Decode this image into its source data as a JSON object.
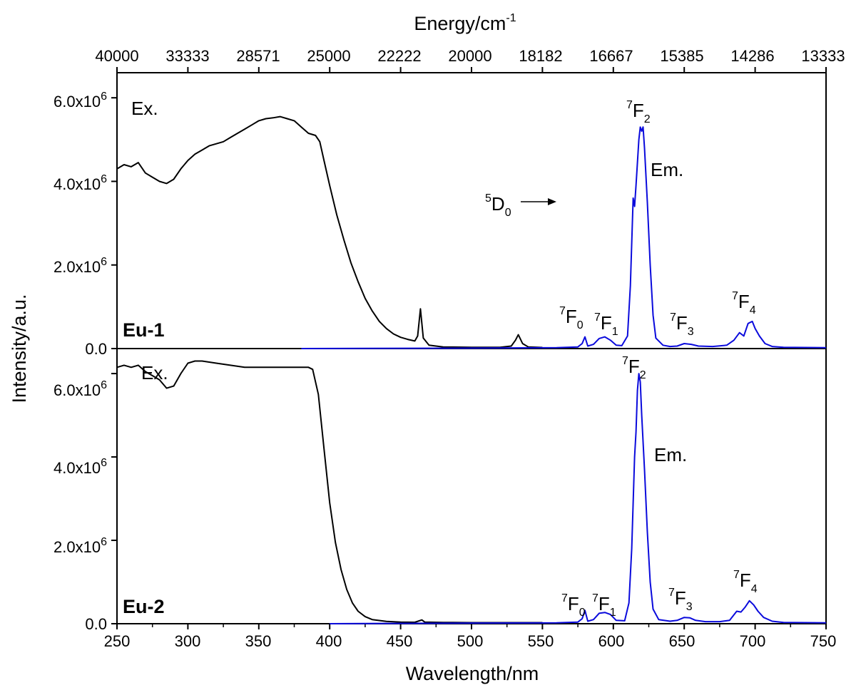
{
  "chart_data": {
    "type": "line",
    "top_axis": {
      "title": "Energy/cm",
      "title_sup": "-1",
      "tick_labels": [
        "40000",
        "33333",
        "28571",
        "25000",
        "22222",
        "20000",
        "18182",
        "16667",
        "15385",
        "14286",
        "13333"
      ]
    },
    "x_axis": {
      "title": "Wavelength/nm",
      "range": [
        250,
        750
      ],
      "ticks": [
        250,
        300,
        350,
        400,
        450,
        500,
        550,
        600,
        650,
        700,
        750
      ]
    },
    "y_axis": {
      "title": "Intensity/a.u.",
      "tick_labels": [
        {
          "mantissa": "0.0",
          "exp": ""
        },
        {
          "mantissa": "2.0x10",
          "exp": "6"
        },
        {
          "mantissa": "4.0x10",
          "exp": "6"
        },
        {
          "mantissa": "6.0x10",
          "exp": "6"
        }
      ],
      "tick_values": [
        0,
        2000000,
        4000000,
        6000000
      ]
    },
    "panels": [
      {
        "label": "Eu-1",
        "ylim": [
          0,
          6600000
        ],
        "series": [
          {
            "color": "#000000",
            "points": [
              [
                250,
                4300000
              ],
              [
                255,
                4400000
              ],
              [
                260,
                4350000
              ],
              [
                265,
                4450000
              ],
              [
                270,
                4200000
              ],
              [
                275,
                4100000
              ],
              [
                280,
                4000000
              ],
              [
                285,
                3950000
              ],
              [
                290,
                4050000
              ],
              [
                295,
                4300000
              ],
              [
                300,
                4500000
              ],
              [
                305,
                4650000
              ],
              [
                310,
                4750000
              ],
              [
                315,
                4850000
              ],
              [
                320,
                4900000
              ],
              [
                325,
                4950000
              ],
              [
                330,
                5050000
              ],
              [
                335,
                5150000
              ],
              [
                340,
                5250000
              ],
              [
                345,
                5350000
              ],
              [
                350,
                5450000
              ],
              [
                355,
                5500000
              ],
              [
                360,
                5520000
              ],
              [
                365,
                5550000
              ],
              [
                370,
                5500000
              ],
              [
                375,
                5450000
              ],
              [
                380,
                5300000
              ],
              [
                385,
                5150000
              ],
              [
                390,
                5100000
              ],
              [
                393,
                4950000
              ],
              [
                396,
                4500000
              ],
              [
                400,
                3900000
              ],
              [
                405,
                3200000
              ],
              [
                410,
                2600000
              ],
              [
                415,
                2050000
              ],
              [
                420,
                1600000
              ],
              [
                425,
                1200000
              ],
              [
                430,
                900000
              ],
              [
                435,
                650000
              ],
              [
                440,
                480000
              ],
              [
                445,
                350000
              ],
              [
                450,
                270000
              ],
              [
                455,
                220000
              ],
              [
                460,
                180000
              ],
              [
                462,
                300000
              ],
              [
                464,
                950000
              ],
              [
                466,
                250000
              ],
              [
                470,
                80000
              ],
              [
                480,
                40000
              ],
              [
                500,
                30000
              ],
              [
                520,
                30000
              ],
              [
                528,
                60000
              ],
              [
                531,
                200000
              ],
              [
                533,
                330000
              ],
              [
                536,
                120000
              ],
              [
                540,
                40000
              ],
              [
                550,
                25000
              ]
            ]
          },
          {
            "color": "#0a0adc",
            "points": [
              [
                380,
                0
              ],
              [
                500,
                10000
              ],
              [
                560,
                20000
              ],
              [
                575,
                40000
              ],
              [
                578,
                120000
              ],
              [
                580,
                280000
              ],
              [
                582,
                60000
              ],
              [
                586,
                100000
              ],
              [
                590,
                240000
              ],
              [
                594,
                280000
              ],
              [
                598,
                200000
              ],
              [
                602,
                80000
              ],
              [
                606,
                70000
              ],
              [
                610,
                300000
              ],
              [
                612,
                1500000
              ],
              [
                614,
                3600000
              ],
              [
                615,
                3400000
              ],
              [
                616,
                3900000
              ],
              [
                618,
                5000000
              ],
              [
                619,
                5300000
              ],
              [
                620,
                5200000
              ],
              [
                621,
                5300000
              ],
              [
                622,
                4800000
              ],
              [
                624,
                3500000
              ],
              [
                626,
                2000000
              ],
              [
                628,
                800000
              ],
              [
                630,
                250000
              ],
              [
                635,
                80000
              ],
              [
                640,
                50000
              ],
              [
                645,
                60000
              ],
              [
                650,
                120000
              ],
              [
                655,
                100000
              ],
              [
                660,
                60000
              ],
              [
                670,
                50000
              ],
              [
                680,
                80000
              ],
              [
                685,
                200000
              ],
              [
                689,
                380000
              ],
              [
                692,
                300000
              ],
              [
                695,
                600000
              ],
              [
                698,
                650000
              ],
              [
                700,
                480000
              ],
              [
                703,
                300000
              ],
              [
                707,
                120000
              ],
              [
                712,
                50000
              ],
              [
                720,
                30000
              ],
              [
                750,
                20000
              ]
            ]
          }
        ],
        "annotations": [
          {
            "base": "Ex.",
            "sup": "",
            "sub": ""
          },
          {
            "base": "Em.",
            "sup": "",
            "sub": ""
          },
          {
            "base": "D",
            "sup": "5",
            "sub": "0"
          },
          {
            "base": "F",
            "sup": "7",
            "sub": "2"
          },
          {
            "base": "F",
            "sup": "7",
            "sub": "0"
          },
          {
            "base": "F",
            "sup": "7",
            "sub": "1"
          },
          {
            "base": "F",
            "sup": "7",
            "sub": "3"
          },
          {
            "base": "F",
            "sup": "7",
            "sub": "4"
          }
        ]
      },
      {
        "label": "Eu-2",
        "ylim": [
          0,
          6600000
        ],
        "series": [
          {
            "color": "#000000",
            "points": [
              [
                250,
                6150000
              ],
              [
                255,
                6200000
              ],
              [
                260,
                6150000
              ],
              [
                265,
                6200000
              ],
              [
                270,
                6050000
              ],
              [
                275,
                5950000
              ],
              [
                280,
                5850000
              ],
              [
                285,
                5650000
              ],
              [
                290,
                5700000
              ],
              [
                295,
                6000000
              ],
              [
                300,
                6250000
              ],
              [
                305,
                6300000
              ],
              [
                310,
                6300000
              ],
              [
                320,
                6250000
              ],
              [
                330,
                6200000
              ],
              [
                340,
                6150000
              ],
              [
                350,
                6150000
              ],
              [
                360,
                6150000
              ],
              [
                370,
                6150000
              ],
              [
                380,
                6150000
              ],
              [
                385,
                6150000
              ],
              [
                388,
                6100000
              ],
              [
                392,
                5500000
              ],
              [
                396,
                4200000
              ],
              [
                400,
                2900000
              ],
              [
                404,
                1950000
              ],
              [
                408,
                1300000
              ],
              [
                412,
                820000
              ],
              [
                416,
                500000
              ],
              [
                420,
                300000
              ],
              [
                425,
                170000
              ],
              [
                430,
                100000
              ],
              [
                440,
                55000
              ],
              [
                450,
                40000
              ],
              [
                460,
                35000
              ],
              [
                465,
                90000
              ],
              [
                467,
                40000
              ],
              [
                480,
                30000
              ],
              [
                500,
                25000
              ],
              [
                550,
                25000
              ]
            ]
          },
          {
            "color": "#0a0adc",
            "points": [
              [
                400,
                0
              ],
              [
                500,
                15000
              ],
              [
                560,
                20000
              ],
              [
                575,
                40000
              ],
              [
                578,
                120000
              ],
              [
                580,
                320000
              ],
              [
                582,
                60000
              ],
              [
                586,
                100000
              ],
              [
                590,
                250000
              ],
              [
                594,
                270000
              ],
              [
                598,
                220000
              ],
              [
                602,
                80000
              ],
              [
                608,
                70000
              ],
              [
                611,
                500000
              ],
              [
                613,
                1800000
              ],
              [
                615,
                4000000
              ],
              [
                616,
                4600000
              ],
              [
                617,
                5600000
              ],
              [
                618,
                6000000
              ],
              [
                619,
                5800000
              ],
              [
                620,
                5000000
              ],
              [
                622,
                3700000
              ],
              [
                624,
                2200000
              ],
              [
                626,
                1000000
              ],
              [
                628,
                350000
              ],
              [
                632,
                100000
              ],
              [
                640,
                60000
              ],
              [
                645,
                80000
              ],
              [
                650,
                150000
              ],
              [
                654,
                140000
              ],
              [
                658,
                80000
              ],
              [
                665,
                50000
              ],
              [
                675,
                50000
              ],
              [
                682,
                80000
              ],
              [
                687,
                300000
              ],
              [
                690,
                280000
              ],
              [
                693,
                400000
              ],
              [
                696,
                550000
              ],
              [
                699,
                450000
              ],
              [
                702,
                300000
              ],
              [
                706,
                150000
              ],
              [
                712,
                60000
              ],
              [
                720,
                30000
              ],
              [
                750,
                20000
              ]
            ]
          }
        ],
        "annotations": [
          {
            "base": "Ex.",
            "sup": "",
            "sub": ""
          },
          {
            "base": "Em.",
            "sup": "",
            "sub": ""
          },
          {
            "base": "F",
            "sup": "7",
            "sub": "2"
          },
          {
            "base": "F",
            "sup": "7",
            "sub": "0"
          },
          {
            "base": "F",
            "sup": "7",
            "sub": "1"
          },
          {
            "base": "F",
            "sup": "7",
            "sub": "3"
          },
          {
            "base": "F",
            "sup": "7",
            "sub": "4"
          }
        ]
      }
    ]
  }
}
